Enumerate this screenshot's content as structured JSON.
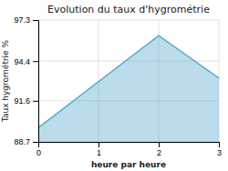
{
  "chart_data": {
    "type": "area",
    "title": "Evolution du taux d'hygrométrie",
    "x_label": "heure par heure",
    "y_label": "Taux hygrométrie %",
    "x": [
      0,
      2,
      3
    ],
    "values": [
      89.7,
      96.2,
      93.2
    ],
    "color": "#55aacc",
    "xlim": [
      0,
      3
    ],
    "xticks": [
      0,
      1,
      2,
      3
    ],
    "ylim": [
      88.7,
      97.3
    ],
    "yticks": [
      88.7,
      91.6,
      94.4,
      97.3
    ],
    "grid": true
  }
}
